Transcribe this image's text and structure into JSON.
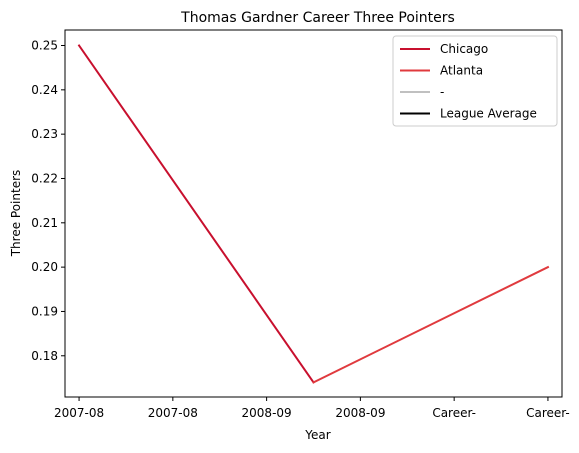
{
  "chart_data": {
    "type": "line",
    "title": "Thomas Gardner  Career Three Pointers",
    "xlabel": "Year",
    "ylabel": "Three Pointers",
    "x_tick_labels": [
      "2007-08",
      "2007-08",
      "2008-09",
      "2008-09",
      "Career-",
      "Career-"
    ],
    "y_ticks": [
      0.18,
      0.19,
      0.2,
      0.21,
      0.22,
      0.23,
      0.24,
      0.25
    ],
    "y_tick_labels": [
      "0.18",
      "0.19",
      "0.20",
      "0.21",
      "0.22",
      "0.23",
      "0.24",
      "0.25"
    ],
    "xlim": [
      -0.15,
      5.15
    ],
    "ylim": [
      0.1707,
      0.2535
    ],
    "grid": false,
    "legend_position": "top-right",
    "series": [
      {
        "name": "Chicago",
        "color": "#c8102e",
        "x": [
          0,
          2.5
        ],
        "y": [
          0.25,
          0.174
        ]
      },
      {
        "name": "Atlanta",
        "color": "#e03a3e",
        "x": [
          2.5,
          5
        ],
        "y": [
          0.174,
          0.2
        ]
      },
      {
        "name": "-",
        "color": "#c0c0c0",
        "x": [],
        "y": []
      },
      {
        "name": "League Average",
        "color": "#000000",
        "x": [],
        "y": []
      }
    ]
  }
}
